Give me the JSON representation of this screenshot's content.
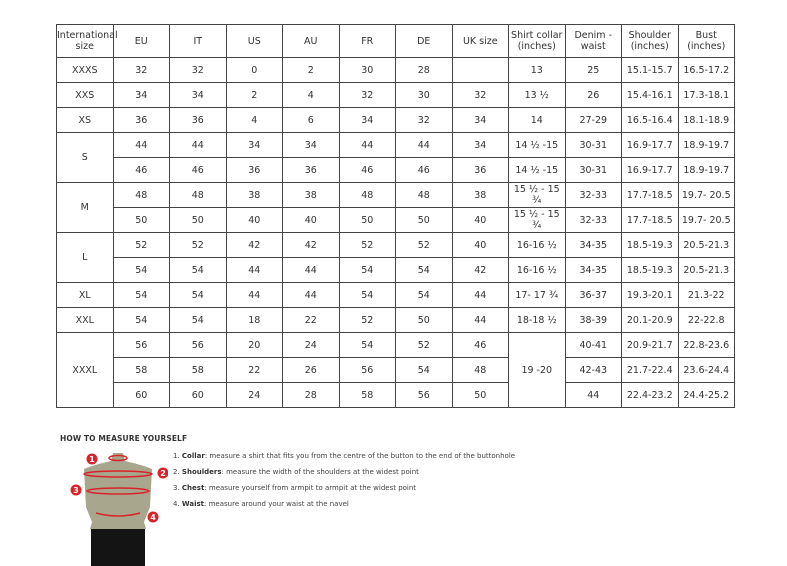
{
  "headers": [
    "International size",
    "EU",
    "IT",
    "US",
    "AU",
    "FR",
    "DE",
    "UK size",
    "Shirt collar (inches)",
    "Denim - waist",
    "Shoulder (inches)",
    "Bust (inches)"
  ],
  "rows": [
    [
      "XXXS",
      "32",
      "32",
      "0",
      "2",
      "30",
      "28",
      "",
      "13",
      "25",
      "15.1-15.7",
      "16.5-17.2"
    ],
    [
      "XXS",
      "34",
      "34",
      "2",
      "4",
      "32",
      "30",
      "32",
      "13 ½",
      "26",
      "15.4-16.1",
      "17.3-18.1"
    ],
    [
      "XS",
      "36",
      "36",
      "4",
      "6",
      "34",
      "32",
      "34",
      "14",
      "27-29",
      "16.5-16.4",
      "18.1-18.9"
    ],
    [
      "S",
      "44",
      "44",
      "34",
      "34",
      "44",
      "44",
      "34",
      "14 ½ -15",
      "30-31",
      "16.9-17.7",
      "18.9-19.7"
    ],
    [
      null,
      "46",
      "46",
      "36",
      "36",
      "46",
      "46",
      "36",
      "14 ½ -15",
      "30-31",
      "16.9-17.7",
      "18.9-19.7"
    ],
    [
      "M",
      "48",
      "48",
      "38",
      "38",
      "48",
      "48",
      "38",
      "15 ½ - 15 ¾",
      "32-33",
      "17.7-18.5",
      "19.7- 20.5"
    ],
    [
      null,
      "50",
      "50",
      "40",
      "40",
      "50",
      "50",
      "40",
      "15 ½ - 15 ¾",
      "32-33",
      "17.7-18.5",
      "19.7- 20.5"
    ],
    [
      "L",
      "52",
      "52",
      "42",
      "42",
      "52",
      "52",
      "40",
      "16-16 ½",
      "34-35",
      "18.5-19.3",
      "20.5-21.3"
    ],
    [
      null,
      "54",
      "54",
      "44",
      "44",
      "54",
      "54",
      "42",
      "16-16 ½",
      "34-35",
      "18.5-19.3",
      "20.5-21.3"
    ],
    [
      "XL",
      "54",
      "54",
      "44",
      "44",
      "54",
      "54",
      "44",
      "17- 17 ¾",
      "36-37",
      "19.3-20.1",
      "21.3-22"
    ],
    [
      "XXL",
      "54",
      "54",
      "18",
      "22",
      "52",
      "50",
      "44",
      "18-18 ½",
      "38-39",
      "20.1-20.9",
      "22-22.8"
    ],
    [
      "XXXL",
      "56",
      "56",
      "20",
      "24",
      "54",
      "52",
      "46",
      "19 -20",
      "40-41",
      "20.9-21.7",
      "22.8-23.6"
    ],
    [
      null,
      "58",
      "58",
      "22",
      "26",
      "56",
      "54",
      "48",
      null,
      "42-43",
      "21.7-22.4",
      "23.6-24.4"
    ],
    [
      null,
      "60",
      "60",
      "24",
      "28",
      "58",
      "56",
      "50",
      null,
      "44",
      "22.4-23.2",
      "24.4-25.2"
    ]
  ],
  "how_to": {
    "title": "HOW TO MEASURE YOURSELF",
    "steps": [
      {
        "num": "1.",
        "term": "Collar",
        "text": ": measure a shirt that fits you from the centre of the button to the end of the buttonhole"
      },
      {
        "num": "2.",
        "term": "Shoulders",
        "text": ": measure the width of the shoulders at the widest point"
      },
      {
        "num": "3.",
        "term": "Chest",
        "text": ": measure yourself from armpit to armpit at the widest point"
      },
      {
        "num": "4.",
        "term": "Waist",
        "text": ": measure around your waist at the navel"
      }
    ],
    "markers": [
      "1",
      "2",
      "3",
      "4"
    ],
    "accent": "#d8232a"
  }
}
